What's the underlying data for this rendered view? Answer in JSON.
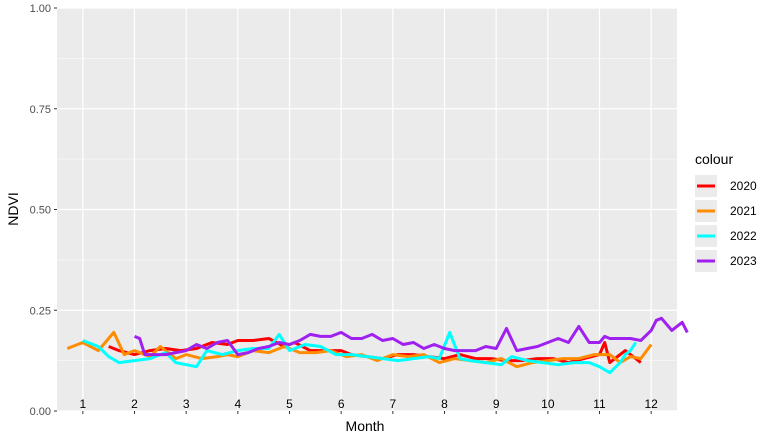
{
  "chart_data": {
    "type": "line",
    "title": "",
    "xlabel": "Month",
    "ylabel": "NDVI",
    "ylim": [
      0,
      1
    ],
    "xlim": [
      0.5,
      12.5
    ],
    "yticks": [
      "0.00",
      "0.25",
      "0.50",
      "0.75",
      "1.00"
    ],
    "ytick_values": [
      0,
      0.25,
      0.5,
      0.75,
      1.0
    ],
    "month_labels": [
      "1",
      "2",
      "3",
      "4",
      "5",
      "6",
      "7",
      "8",
      "9",
      "10",
      "11",
      "12"
    ],
    "legend": {
      "title": "colour",
      "position": "right"
    },
    "grid": true,
    "colors": {
      "panel": "#EBEBEB",
      "grid": "#FFFFFF"
    },
    "series": [
      {
        "name": "2020",
        "color": "#FF0000",
        "x": [
          1.5,
          1.7,
          2.0,
          2.3,
          2.6,
          2.9,
          3.2,
          3.5,
          3.8,
          4.0,
          4.3,
          4.6,
          4.9,
          5.1,
          5.4,
          5.7,
          6.0,
          6.2,
          6.5,
          6.8,
          7.1,
          7.4,
          7.7,
          8.0,
          8.3,
          8.6,
          8.9,
          9.2,
          9.5,
          9.8,
          10.1,
          10.4,
          10.7,
          11.0,
          11.1,
          11.2,
          11.5,
          11.7,
          11.8
        ],
        "y": [
          0.16,
          0.15,
          0.14,
          0.15,
          0.155,
          0.15,
          0.155,
          0.17,
          0.165,
          0.175,
          0.175,
          0.18,
          0.16,
          0.17,
          0.15,
          0.15,
          0.15,
          0.14,
          0.135,
          0.13,
          0.14,
          0.14,
          0.135,
          0.13,
          0.14,
          0.13,
          0.13,
          0.125,
          0.125,
          0.13,
          0.13,
          0.12,
          0.13,
          0.14,
          0.17,
          0.12,
          0.15,
          0.13,
          0.12
        ]
      },
      {
        "name": "2021",
        "color": "#FF8C00",
        "x": [
          0.7,
          1.0,
          1.3,
          1.6,
          1.8,
          2.0,
          2.3,
          2.5,
          2.8,
          3.0,
          3.3,
          3.6,
          3.8,
          4.0,
          4.3,
          4.6,
          4.9,
          5.2,
          5.5,
          5.8,
          6.1,
          6.4,
          6.7,
          7.0,
          7.3,
          7.6,
          7.9,
          8.2,
          8.5,
          8.8,
          9.1,
          9.4,
          9.7,
          10.0,
          10.3,
          10.6,
          10.9,
          11.2,
          11.4,
          11.6,
          11.8,
          12.0
        ],
        "y": [
          0.155,
          0.17,
          0.15,
          0.195,
          0.14,
          0.15,
          0.135,
          0.16,
          0.13,
          0.14,
          0.13,
          0.135,
          0.14,
          0.135,
          0.15,
          0.145,
          0.16,
          0.145,
          0.145,
          0.15,
          0.135,
          0.14,
          0.125,
          0.14,
          0.135,
          0.14,
          0.12,
          0.13,
          0.125,
          0.12,
          0.13,
          0.11,
          0.12,
          0.125,
          0.13,
          0.13,
          0.14,
          0.14,
          0.12,
          0.135,
          0.13,
          0.165
        ]
      },
      {
        "name": "2022",
        "color": "#00FFFF",
        "x": [
          1.0,
          1.3,
          1.5,
          1.7,
          2.0,
          2.3,
          2.6,
          2.8,
          3.0,
          3.2,
          3.4,
          3.7,
          4.0,
          4.3,
          4.6,
          4.8,
          5.0,
          5.3,
          5.6,
          5.9,
          6.2,
          6.5,
          6.8,
          7.1,
          7.4,
          7.7,
          7.9,
          8.1,
          8.3,
          8.5,
          8.8,
          9.1,
          9.3,
          9.6,
          9.9,
          10.2,
          10.5,
          10.8,
          11.0,
          11.2,
          11.4,
          11.5,
          11.6,
          11.7
        ],
        "y": [
          0.175,
          0.16,
          0.135,
          0.12,
          0.125,
          0.13,
          0.145,
          0.12,
          0.115,
          0.11,
          0.15,
          0.14,
          0.15,
          0.155,
          0.155,
          0.19,
          0.15,
          0.165,
          0.16,
          0.14,
          0.14,
          0.135,
          0.13,
          0.125,
          0.13,
          0.135,
          0.13,
          0.195,
          0.13,
          0.125,
          0.12,
          0.115,
          0.135,
          0.125,
          0.12,
          0.115,
          0.12,
          0.12,
          0.11,
          0.095,
          0.12,
          0.14,
          0.15,
          0.17
        ]
      },
      {
        "name": "2023",
        "color": "#A020F0",
        "x": [
          2.0,
          2.1,
          2.2,
          2.4,
          2.6,
          2.8,
          3.0,
          3.2,
          3.4,
          3.6,
          3.8,
          4.0,
          4.2,
          4.4,
          4.6,
          4.8,
          5.0,
          5.2,
          5.4,
          5.6,
          5.8,
          6.0,
          6.2,
          6.4,
          6.6,
          6.8,
          7.0,
          7.2,
          7.4,
          7.6,
          7.8,
          8.0,
          8.2,
          8.4,
          8.6,
          8.8,
          9.0,
          9.2,
          9.4,
          9.6,
          9.8,
          10.0,
          10.2,
          10.4,
          10.6,
          10.8,
          11.0,
          11.1,
          11.2,
          11.4,
          11.6,
          11.8,
          12.0,
          12.1,
          12.2,
          12.4,
          12.6,
          12.7
        ],
        "y": [
          0.185,
          0.18,
          0.14,
          0.14,
          0.14,
          0.145,
          0.15,
          0.165,
          0.155,
          0.17,
          0.175,
          0.14,
          0.145,
          0.155,
          0.16,
          0.17,
          0.165,
          0.175,
          0.19,
          0.185,
          0.185,
          0.195,
          0.18,
          0.18,
          0.19,
          0.175,
          0.18,
          0.165,
          0.17,
          0.155,
          0.165,
          0.155,
          0.15,
          0.15,
          0.15,
          0.16,
          0.155,
          0.205,
          0.15,
          0.155,
          0.16,
          0.17,
          0.18,
          0.17,
          0.21,
          0.17,
          0.17,
          0.185,
          0.18,
          0.18,
          0.18,
          0.175,
          0.2,
          0.225,
          0.23,
          0.2,
          0.22,
          0.195
        ]
      }
    ]
  }
}
